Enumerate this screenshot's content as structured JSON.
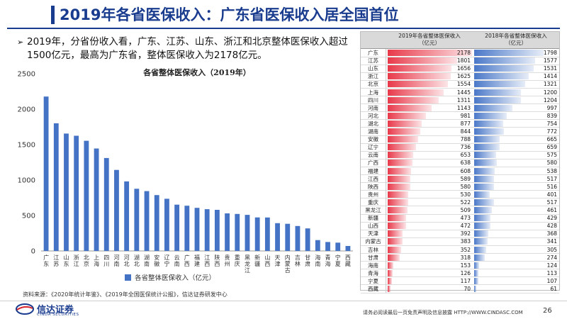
{
  "header": {
    "title": "2019年各省医保收入：广东省医保收入居全国首位"
  },
  "bullet": {
    "text": "2019年，分省份收入看，广东、江苏、山东、浙江和北京整体医保收入超过1500亿元，最高为广东省，整体医保收入为2178亿元。"
  },
  "chart_data": {
    "type": "bar",
    "title": "各省整体医保收入（2019年）",
    "legend": "各省整体医保收入（亿元）",
    "legend_position": "bottom",
    "categories": [
      "广东",
      "江苏",
      "山东",
      "浙江",
      "北京",
      "上海",
      "四川",
      "河南",
      "河北",
      "湖北",
      "湖南",
      "安徽",
      "辽宁",
      "云南",
      "广西",
      "福建",
      "江西",
      "陕西",
      "贵州",
      "重庆",
      "黑龙江",
      "新疆",
      "山西",
      "天津",
      "内蒙古",
      "吉林",
      "甘肃",
      "海南",
      "青海",
      "宁夏",
      "西藏"
    ],
    "values": [
      2178,
      1801,
      1656,
      1625,
      1554,
      1445,
      1311,
      1143,
      981,
      877,
      844,
      788,
      736,
      653,
      638,
      608,
      589,
      580,
      530,
      522,
      509,
      473,
      472,
      392,
      383,
      352,
      318,
      153,
      126,
      117,
      70
    ],
    "yticks": [
      0,
      500,
      1000,
      1500,
      2000,
      2500
    ],
    "ylim": [
      0,
      2500
    ],
    "grid": false,
    "colors": {
      "bar": "#4472c4"
    }
  },
  "table": {
    "headers": [
      "2019年各省整体医保收入\n（亿元）",
      "2018年各省整体医保收入\n（亿元）"
    ],
    "colors": {
      "col2019": "#e8394a",
      "col2018": "#4a78c8"
    },
    "max": 2178,
    "rows": [
      {
        "province": "广东",
        "v2019": "2178",
        "v2018": "1798"
      },
      {
        "province": "江苏",
        "v2019": "1801",
        "v2018": "1577"
      },
      {
        "province": "山东",
        "v2019": "1656",
        "v2018": "1531"
      },
      {
        "province": "浙江",
        "v2019": "1625",
        "v2018": "1414"
      },
      {
        "province": "北京",
        "v2019": "1554",
        "v2018": "1321"
      },
      {
        "province": "上海",
        "v2019": "1445",
        "v2018": "1200"
      },
      {
        "province": "四川",
        "v2019": "1311",
        "v2018": "1204"
      },
      {
        "province": "河南",
        "v2019": "1143",
        "v2018": "997"
      },
      {
        "province": "河北",
        "v2019": "981",
        "v2018": "839"
      },
      {
        "province": "湖北",
        "v2019": "877",
        "v2018": "754"
      },
      {
        "province": "湖南",
        "v2019": "844",
        "v2018": "772"
      },
      {
        "province": "安徽",
        "v2019": "788",
        "v2018": "665"
      },
      {
        "province": "辽宁",
        "v2019": "736",
        "v2018": "659"
      },
      {
        "province": "云南",
        "v2019": "653",
        "v2018": "575"
      },
      {
        "province": "广西",
        "v2019": "638",
        "v2018": "580"
      },
      {
        "province": "福建",
        "v2019": "608",
        "v2018": "538"
      },
      {
        "province": "江西",
        "v2019": "589",
        "v2018": "517"
      },
      {
        "province": "陕西",
        "v2019": "580",
        "v2018": "516"
      },
      {
        "province": "贵州",
        "v2019": "530",
        "v2018": "401"
      },
      {
        "province": "重庆",
        "v2019": "522",
        "v2018": "517"
      },
      {
        "province": "黑龙江",
        "v2019": "509",
        "v2018": "461"
      },
      {
        "province": "新疆",
        "v2019": "473",
        "v2018": "429"
      },
      {
        "province": "山西",
        "v2019": "472",
        "v2018": "428"
      },
      {
        "province": "天津",
        "v2019": "392",
        "v2018": "368"
      },
      {
        "province": "内蒙古",
        "v2019": "383",
        "v2018": "341"
      },
      {
        "province": "吉林",
        "v2019": "352",
        "v2018": "305"
      },
      {
        "province": "甘肃",
        "v2019": "318",
        "v2018": "274"
      },
      {
        "province": "海南",
        "v2019": "153",
        "v2018": "124"
      },
      {
        "province": "青海",
        "v2019": "126",
        "v2018": "113"
      },
      {
        "province": "宁夏",
        "v2019": "117",
        "v2018": "107"
      },
      {
        "province": "西藏",
        "v2019": "70",
        "v2018": "61"
      }
    ]
  },
  "source": "资料来源：《2020年统计年鉴》、《2019年全国医保统计公报》，信达证券研发中心",
  "footer": {
    "logo_cn": "信达证券",
    "logo_en": "CINDA SECURITIES",
    "disclaimer": "请务必阅读最后一页免责声明及信息披露  HTTP://WWW.CINDASC.COM",
    "page": "26"
  }
}
